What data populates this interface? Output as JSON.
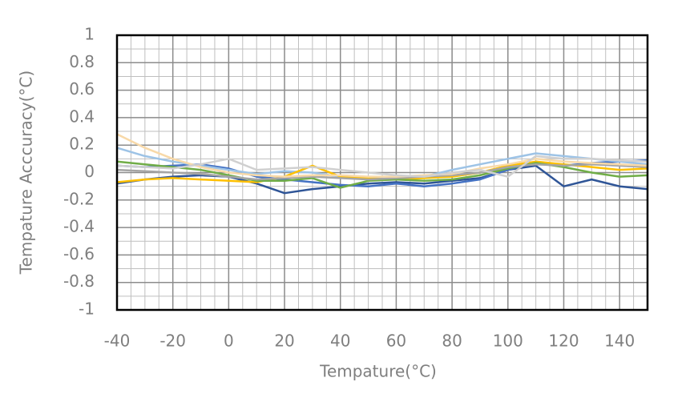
{
  "chart_data": {
    "type": "line",
    "x_label": "Tempature(°C)",
    "y_label": "Tempature Acccuracy(°C)",
    "x": [
      -40,
      -30,
      -20,
      -10,
      0,
      10,
      20,
      30,
      40,
      50,
      60,
      70,
      80,
      90,
      100,
      110,
      120,
      130,
      140,
      150
    ],
    "xlim": [
      -40,
      150
    ],
    "xticks": [
      -40,
      -20,
      0,
      20,
      40,
      60,
      80,
      100,
      120,
      140
    ],
    "ylim": [
      -1,
      1
    ],
    "yticks": [
      -1,
      -0.8,
      -0.6,
      -0.4,
      -0.2,
      0,
      0.2,
      0.4,
      0.6,
      0.8,
      1
    ],
    "grid": true,
    "series": [
      {
        "color": "#2f5597",
        "values": [
          -0.08,
          -0.05,
          -0.03,
          -0.02,
          -0.03,
          -0.08,
          -0.15,
          -0.12,
          -0.1,
          -0.08,
          -0.07,
          -0.08,
          -0.06,
          -0.04,
          0.02,
          0.05,
          -0.1,
          -0.05,
          -0.1,
          -0.12
        ]
      },
      {
        "color": "#4472c4",
        "values": [
          0.05,
          0.04,
          0.05,
          0.06,
          0.03,
          -0.03,
          -0.05,
          -0.07,
          -0.09,
          -0.1,
          -0.08,
          -0.1,
          -0.08,
          -0.05,
          0.02,
          0.08,
          0.05,
          0.07,
          0.08,
          0.09
        ]
      },
      {
        "color": "#9dc3e6",
        "values": [
          0.18,
          0.12,
          0.08,
          0.05,
          0.02,
          -0.01,
          0.01,
          0.0,
          -0.03,
          -0.04,
          -0.05,
          -0.03,
          0.02,
          0.06,
          0.1,
          0.14,
          0.12,
          0.1,
          0.08,
          0.06
        ]
      },
      {
        "color": "#ffc000",
        "values": [
          -0.07,
          -0.05,
          -0.04,
          -0.05,
          -0.06,
          -0.07,
          -0.03,
          0.05,
          -0.03,
          -0.04,
          -0.05,
          -0.04,
          -0.03,
          0.0,
          0.05,
          0.08,
          0.06,
          0.04,
          0.02,
          0.03
        ]
      },
      {
        "color": "#70ad47",
        "values": [
          0.08,
          0.06,
          0.04,
          0.02,
          -0.02,
          -0.06,
          -0.06,
          -0.04,
          -0.11,
          -0.06,
          -0.05,
          -0.06,
          -0.05,
          -0.02,
          0.03,
          0.07,
          0.04,
          0.0,
          -0.03,
          -0.02
        ]
      },
      {
        "color": "#a5a5a5",
        "values": [
          0.02,
          0.01,
          0.0,
          -0.01,
          -0.03,
          -0.05,
          -0.04,
          -0.03,
          -0.04,
          -0.05,
          -0.04,
          -0.03,
          -0.02,
          0.0,
          0.04,
          0.06,
          0.05,
          0.06,
          0.05,
          0.04
        ]
      },
      {
        "color": "#f8d9a8",
        "values": [
          0.28,
          0.18,
          0.1,
          0.04,
          0.0,
          -0.02,
          -0.03,
          -0.02,
          -0.02,
          -0.03,
          -0.03,
          -0.02,
          -0.01,
          0.03,
          0.06,
          0.1,
          0.08,
          0.07,
          0.06,
          0.05
        ]
      },
      {
        "color": "#d0d0d0",
        "values": [
          0.05,
          0.04,
          0.03,
          0.06,
          0.1,
          0.02,
          0.03,
          0.04,
          0.02,
          0.0,
          -0.02,
          -0.03,
          0.0,
          0.02,
          -0.03,
          0.12,
          0.1,
          0.1,
          0.09,
          0.08
        ]
      }
    ]
  }
}
